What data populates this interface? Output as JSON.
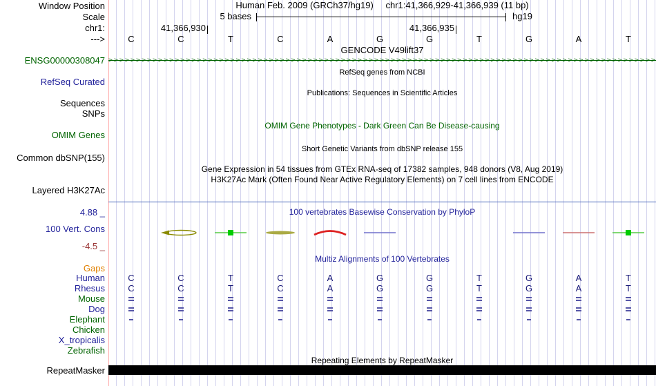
{
  "colors": {
    "grid_line": "#d4d4ee",
    "label_divider_pink": "#ffadad",
    "section_divider_blue": "#3e5fb5",
    "track_green": "#006400",
    "track_navy": "#22229b",
    "gaps_orange": "#e08000",
    "cons_min_maroon": "#993333",
    "alignment_text": "#1b1b7a",
    "alignment_bar": "#5656a8",
    "repeat_bar": "#000000"
  },
  "header": {
    "assembly_title": "Human Feb. 2009 (GRCh37/hg19)",
    "position_title": "chr1:41,366,929-41,366,939 (11 bp)",
    "scale_label": "5 bases",
    "assembly_short": "hg19",
    "ruler_ticks": [
      {
        "label": "41,366,930"
      },
      {
        "label": "41,366,935"
      }
    ]
  },
  "left_labels": {
    "window_position": "Window Position",
    "scale": "Scale",
    "chrom": "chr1:",
    "strand": "--->",
    "gene_id": "ENSG00000308047",
    "refseq": "RefSeq Curated",
    "sequences_line1": "Sequences",
    "sequences_line2": "SNPs",
    "omim": "OMIM Genes",
    "dbsnp": "Common dbSNP(155)",
    "h3k27ac": "Layered H3K27Ac",
    "cons_max": "4.88 _",
    "cons_label": "100 Vert. Cons",
    "cons_min": "-4.5 _",
    "repeatmasker": "RepeatMasker"
  },
  "sequence": {
    "bases": [
      "C",
      "C",
      "T",
      "C",
      "A",
      "G",
      "G",
      "T",
      "G",
      "A",
      "T"
    ]
  },
  "gencode": {
    "arrow_char": ">",
    "arrow_count": 99
  },
  "headings": {
    "gencode": "GENCODE V49lift37",
    "refseq": "RefSeq genes from NCBI",
    "publications": "Publications: Sequences in Scientific Articles",
    "omim": "OMIM Gene Phenotypes - Dark Green Can Be Disease-causing",
    "dbsnp": "Short Genetic Variants from dbSNP release 155",
    "gtex": "Gene Expression in 54 tissues from GTEx RNA-seq of 17382 samples, 948 donors (V8, Aug 2019)",
    "h3k27ac": "H3K27Ac Mark (Often Found Near Active Regulatory Elements) on 7 cell lines from ENCODE",
    "phylop": "100 vertebrates Basewise Conservation by PhyloP",
    "multiz": "Multiz Alignments of 100 Vertebrates",
    "repeatmasker": "Repeating Elements by RepeatMasker"
  },
  "conservation": {
    "glyphs": [
      {
        "col": 1,
        "shape": "lens-outline",
        "color": "#8a8a00"
      },
      {
        "col": 2,
        "shape": "line-square",
        "color": "#55cc44",
        "square_color": "#00cc00"
      },
      {
        "col": 3,
        "shape": "lens-fill",
        "color": "#aaaa44"
      },
      {
        "col": 4,
        "shape": "arc",
        "color": "#dd2222"
      },
      {
        "col": 5,
        "shape": "line",
        "color": "#7070cc"
      },
      {
        "col": 8,
        "shape": "line",
        "color": "#7070cc"
      },
      {
        "col": 9,
        "shape": "line",
        "color": "#cc7070"
      },
      {
        "col": 10,
        "shape": "line-square",
        "color": "#55cc44",
        "square_color": "#00cc00"
      }
    ]
  },
  "multiz": {
    "rows": [
      {
        "label": "Gaps",
        "label_color": "orange",
        "cells": []
      },
      {
        "label": "Human",
        "label_color": "navy",
        "cells": [
          "C",
          "C",
          "T",
          "C",
          "A",
          "G",
          "G",
          "T",
          "G",
          "A",
          "T"
        ]
      },
      {
        "label": "Rhesus",
        "label_color": "navy",
        "cells": [
          "C",
          "C",
          "T",
          "C",
          "A",
          "G",
          "G",
          "T",
          "G",
          "A",
          "T"
        ]
      },
      {
        "label": "Mouse",
        "label_color": "green",
        "cells": [
          "=",
          "=",
          "=",
          "=",
          "=",
          "=",
          "=",
          "=",
          "=",
          "=",
          "="
        ]
      },
      {
        "label": "Dog",
        "label_color": "navy",
        "cells": [
          "=",
          "=",
          "=",
          "=",
          "=",
          "=",
          "=",
          "=",
          "=",
          "=",
          "="
        ]
      },
      {
        "label": "Elephant",
        "label_color": "green",
        "cells": [
          "-",
          "-",
          "-",
          "-",
          "-",
          "-",
          "-",
          "-",
          "-",
          "-",
          "-"
        ]
      },
      {
        "label": "Chicken",
        "label_color": "green",
        "cells": []
      },
      {
        "label": "X_tropicalis",
        "label_color": "navy",
        "cells": []
      },
      {
        "label": "Zebrafish",
        "label_color": "green",
        "cells": []
      }
    ]
  }
}
